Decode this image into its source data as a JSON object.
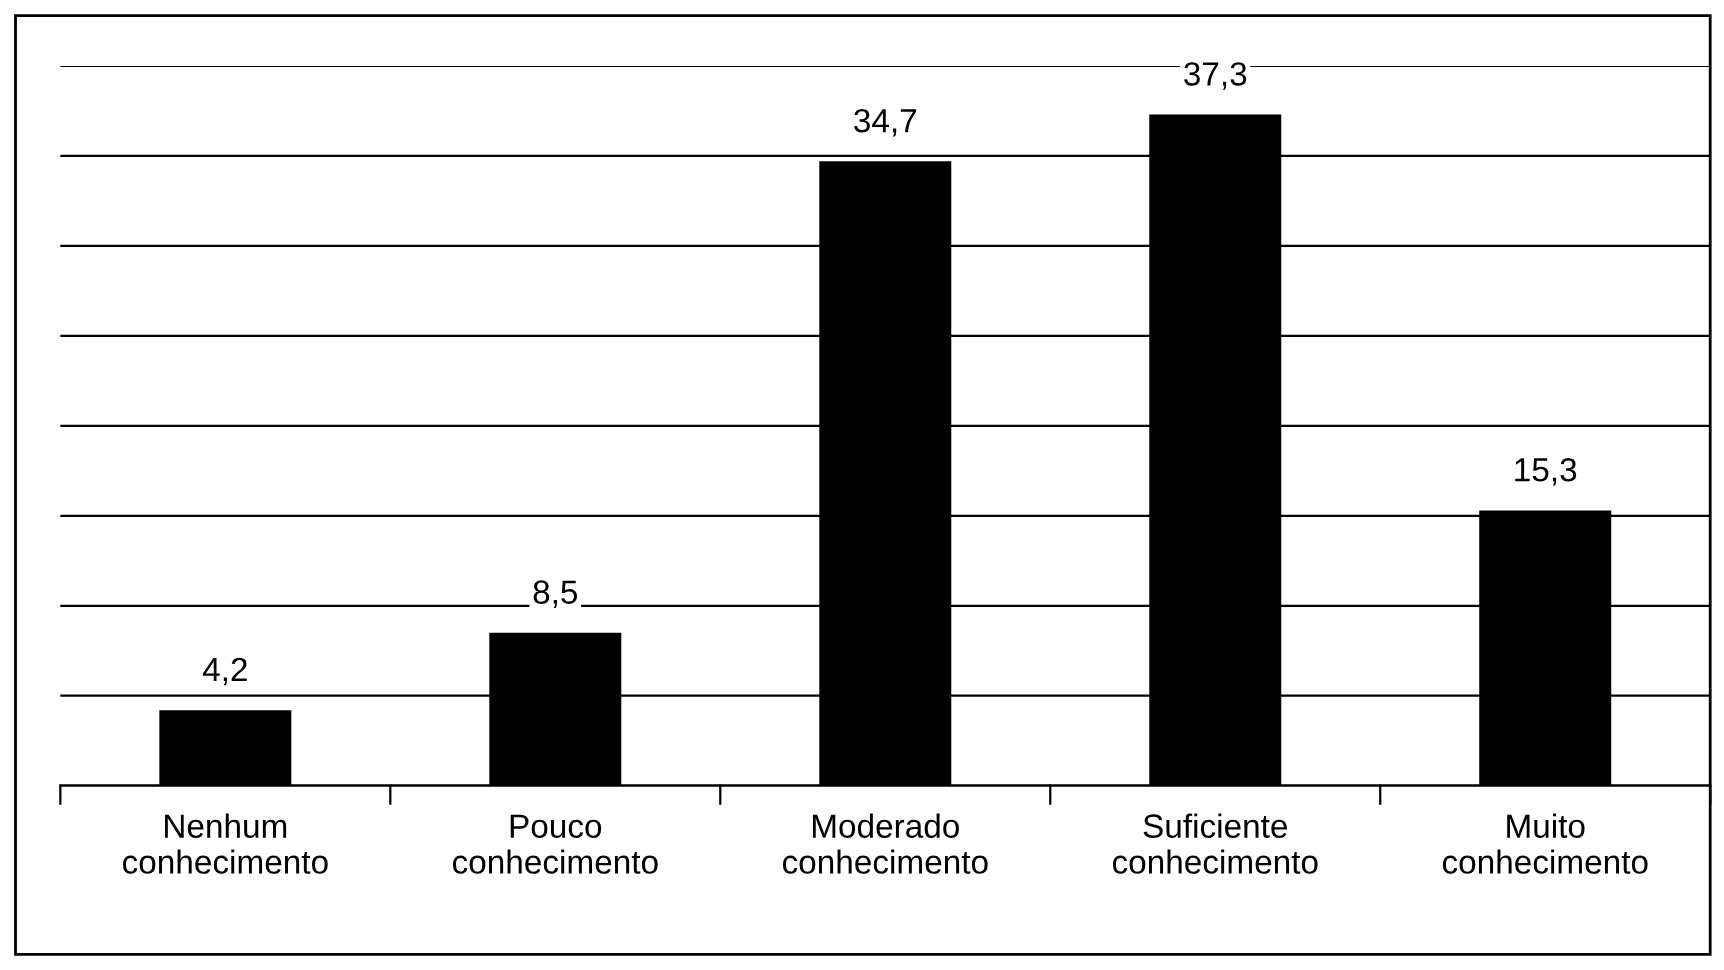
{
  "chart_data": {
    "type": "bar",
    "categories": [
      "Nenhum\nconhecimento",
      "Pouco\nconhecimento",
      "Moderado\nconhecimento",
      "Suficiente\nconhecimento",
      "Muito\nconhecimento"
    ],
    "values": [
      4.2,
      8.5,
      34.7,
      37.3,
      15.3
    ],
    "value_labels": [
      "4,2",
      "8,5",
      "34,7",
      "37,3",
      "15,3"
    ],
    "color": "#000000",
    "ylim": [
      0,
      40
    ],
    "yticks": [
      {
        "value": 0,
        "label": null
      },
      {
        "value": 5,
        "label": null
      },
      {
        "value": 10,
        "label": null
      },
      {
        "value": 15,
        "label": null
      },
      {
        "value": 20,
        "label": null
      },
      {
        "value": 25,
        "label": null
      },
      {
        "value": 30,
        "label": null
      },
      {
        "value": 35,
        "label": null
      },
      {
        "value": 40,
        "label": null
      }
    ],
    "grid": "y",
    "tick_labels": "x",
    "legend": false
  }
}
